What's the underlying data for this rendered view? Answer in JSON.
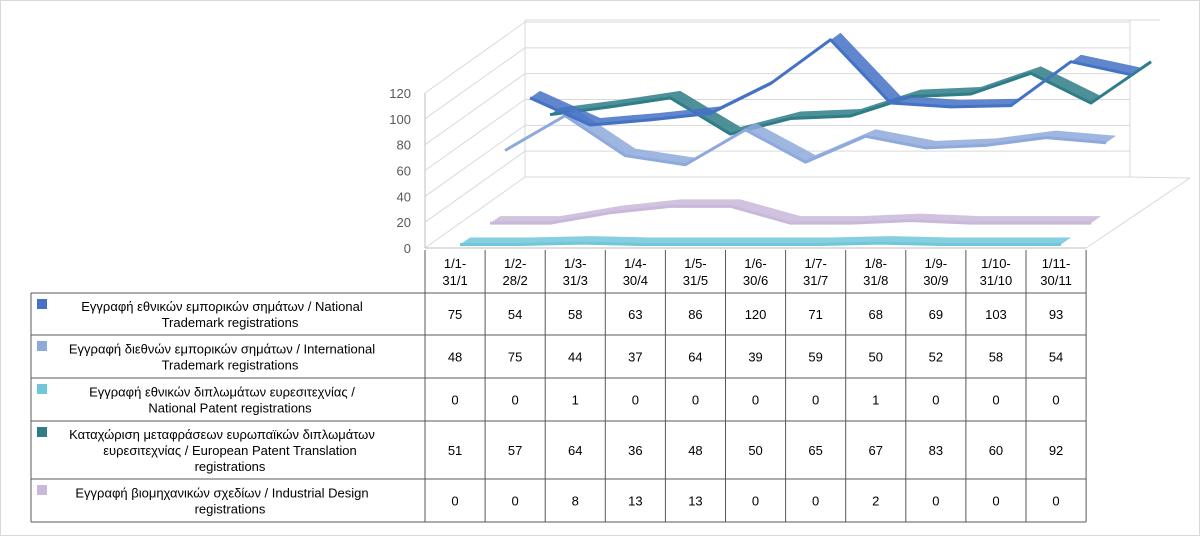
{
  "chart_data": {
    "type": "line",
    "title": "",
    "xlabel": "",
    "ylabel": "",
    "ylim": [
      0,
      120
    ],
    "yticks": [
      0,
      20,
      40,
      60,
      80,
      100,
      120
    ],
    "grid": true,
    "style": "3d-line-with-data-table",
    "categories": [
      [
        "1/1-",
        "31/1"
      ],
      [
        "1/2-",
        "28/2"
      ],
      [
        "1/3-",
        "31/3"
      ],
      [
        "1/4-",
        "30/4"
      ],
      [
        "1/5-",
        "31/5"
      ],
      [
        "1/6-",
        "30/6"
      ],
      [
        "1/7-",
        "31/7"
      ],
      [
        "1/8-",
        "31/8"
      ],
      [
        "1/9-",
        "30/9"
      ],
      [
        "1/10-",
        "31/10"
      ],
      [
        "1/11-",
        "30/11"
      ]
    ],
    "series": [
      {
        "name_lines": [
          "Εγγραφή εθνικών εμπορικών σημάτων / National",
          "Trademark registrations"
        ],
        "color": "#4472C4",
        "values": [
          75,
          54,
          58,
          63,
          86,
          120,
          71,
          68,
          69,
          103,
          93
        ]
      },
      {
        "name_lines": [
          "Εγγραφή διεθνών εμπορικών σημάτων / International",
          "Trademark registrations"
        ],
        "color": "#8EA9DB",
        "values": [
          48,
          75,
          44,
          37,
          64,
          39,
          59,
          50,
          52,
          58,
          54
        ]
      },
      {
        "name_lines": [
          "Εγγραφή εθνικών διπλωμάτων ευρεσιτεχνίας /",
          "National Patent registrations"
        ],
        "color": "#70C7DA",
        "values": [
          0,
          0,
          1,
          0,
          0,
          0,
          0,
          1,
          0,
          0,
          0
        ]
      },
      {
        "name_lines": [
          "Καταχώριση μεταφράσεων ευρωπαϊκών διπλωμάτων",
          "ευρεσιτεχνίας / European Patent Translation",
          "registrations"
        ],
        "color": "#2E7D87",
        "values": [
          51,
          57,
          64,
          36,
          48,
          50,
          65,
          67,
          83,
          60,
          92
        ]
      },
      {
        "name_lines": [
          "Εγγραφή βιομηχανικών σχεδίων / Industrial Design",
          "registrations"
        ],
        "color": "#C9B8D9",
        "values": [
          0,
          0,
          8,
          13,
          13,
          0,
          0,
          2,
          0,
          0,
          0
        ]
      }
    ]
  }
}
